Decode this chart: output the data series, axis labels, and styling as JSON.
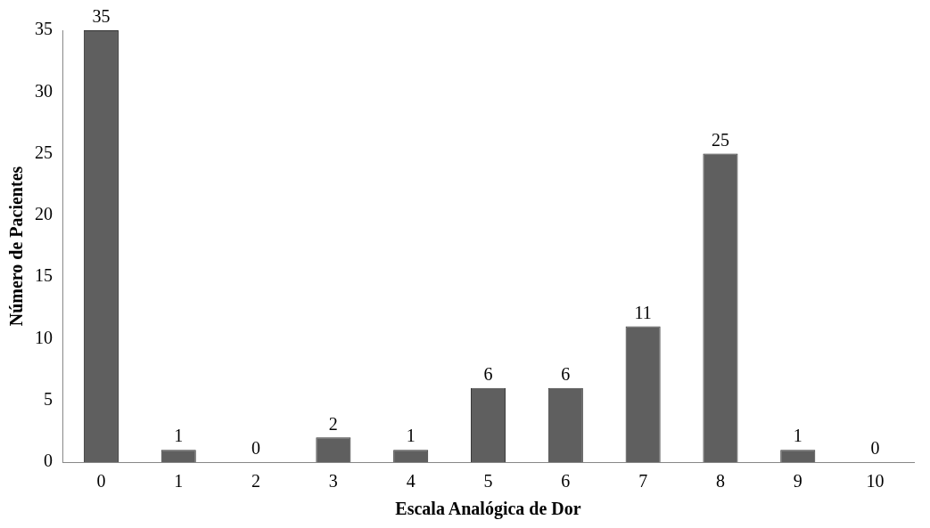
{
  "chart_data": {
    "type": "bar",
    "xlabel": "Escala Analógica de Dor",
    "ylabel": "Número de Pacientes",
    "categories": [
      "0",
      "1",
      "2",
      "3",
      "4",
      "5",
      "6",
      "7",
      "8",
      "9",
      "10"
    ],
    "values": [
      35,
      1,
      0,
      2,
      1,
      6,
      6,
      11,
      25,
      1,
      0
    ],
    "color": "#5f5f5f",
    "ylim": [
      0,
      35
    ],
    "yticks": [
      0,
      5,
      10,
      15,
      20,
      25,
      30,
      35
    ],
    "grid": false,
    "legend": false,
    "data_labels": true
  }
}
